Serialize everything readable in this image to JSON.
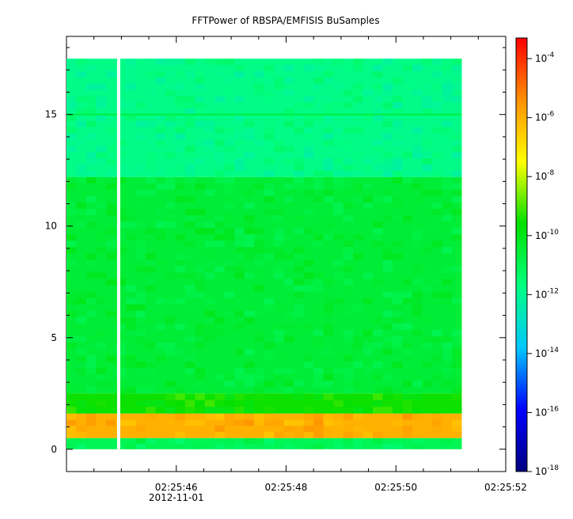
{
  "chart_data": {
    "type": "heatmap",
    "title": "FFTPower of RBSPA/EMFISIS  BuSamples",
    "xlabel": "",
    "ylabel": "",
    "x_ticks": [
      "02:25:46",
      "02:25:48",
      "02:25:50",
      "02:25:52"
    ],
    "x_tick_seconds": [
      46,
      48,
      50,
      52
    ],
    "x_date_label": "2012-11-01",
    "x_range_seconds": [
      44.0,
      52.0
    ],
    "y_ticks": [
      0,
      5,
      10,
      15
    ],
    "y_range": [
      -1,
      18.5
    ],
    "data_extent": {
      "x_seconds": [
        44.0,
        51.2
      ],
      "y": [
        0,
        17.5
      ],
      "gap_seconds": 44.95
    },
    "colorbar": {
      "scale": "log",
      "range_exponents": [
        -18,
        -3.3
      ],
      "ticks": [
        {
          "base": "10",
          "exp": "-4",
          "value": -4
        },
        {
          "base": "10",
          "exp": "-6",
          "value": -6
        },
        {
          "base": "10",
          "exp": "-8",
          "value": -8
        },
        {
          "base": "10",
          "exp": "-10",
          "value": -10
        },
        {
          "base": "10",
          "exp": "-12",
          "value": -12
        },
        {
          "base": "10",
          "exp": "-14",
          "value": -14
        },
        {
          "base": "10",
          "exp": "-16",
          "value": -16
        },
        {
          "base": "10",
          "exp": "-18",
          "value": -18
        }
      ],
      "stops": [
        "#00007f",
        "#0000ff",
        "#00c8ff",
        "#00ff80",
        "#00e000",
        "#ffff00",
        "#ff9000",
        "#ff0000"
      ]
    },
    "bands": [
      {
        "y": [
          0.0,
          0.5
        ],
        "level_exp": -11
      },
      {
        "y": [
          0.5,
          1.6
        ],
        "level_exp": -6
      },
      {
        "y": [
          1.6,
          2.5
        ],
        "level_exp": -9.5
      },
      {
        "y": [
          2.5,
          12.2
        ],
        "level_exp": -10.5
      },
      {
        "y": [
          12.2,
          17.5
        ],
        "level_exp": -11.8
      }
    ],
    "line_at_y": 15
  }
}
